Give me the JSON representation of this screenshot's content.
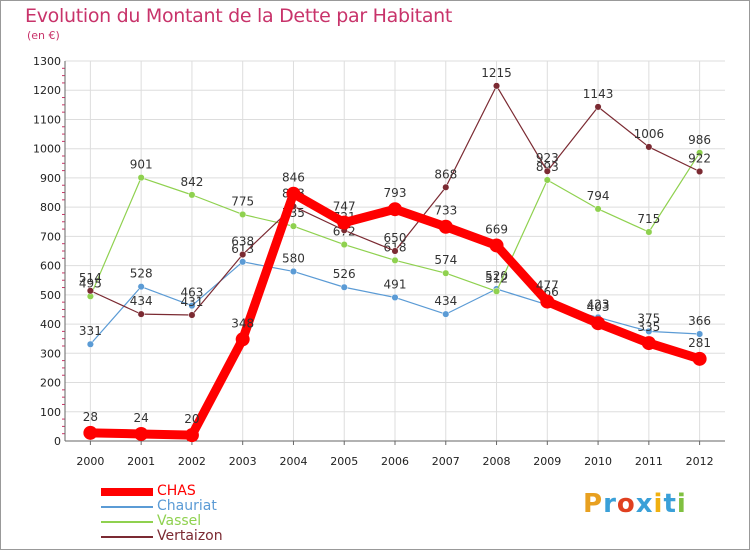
{
  "chart_data": {
    "type": "line",
    "title": "Evolution du Montant de la Dette par Habitant",
    "subtitle": "(en €)",
    "x": [
      "2000",
      "2001",
      "2002",
      "2003",
      "2004",
      "2005",
      "2006",
      "2007",
      "2008",
      "2009",
      "2010",
      "2011",
      "2012"
    ],
    "yticks": [
      "0",
      "100",
      "200",
      "300",
      "400",
      "500",
      "600",
      "700",
      "800",
      "900",
      "1000",
      "1100",
      "1200",
      "1300"
    ],
    "ylim": [
      0,
      1300
    ],
    "grid": true,
    "legend_position": "bottom-left",
    "series": [
      {
        "name": "Chauriat",
        "color": "#5b9bd5",
        "values": [
          331,
          528,
          463,
          613,
          580,
          526,
          491,
          434,
          520,
          466,
          423,
          375,
          366
        ],
        "labels": [
          "331",
          "528",
          "463",
          "613",
          "580",
          "526",
          "491",
          "434",
          "520",
          "466",
          "423",
          "375",
          "366"
        ]
      },
      {
        "name": "Vassel",
        "color": "#8fd14f",
        "values": [
          495,
          901,
          842,
          775,
          735,
          672,
          618,
          574,
          512,
          893,
          794,
          715,
          986
        ],
        "labels": [
          "495",
          "901",
          "842",
          "775",
          "735",
          "672",
          "618",
          "574",
          "512",
          "893",
          "794",
          "715",
          "986"
        ]
      },
      {
        "name": "Vertaizon",
        "color": "#7b2a32",
        "values": [
          514,
          434,
          431,
          638,
          803,
          721,
          650,
          868,
          1215,
          923,
          1143,
          1006,
          922
        ],
        "labels": [
          "514",
          "434",
          "431",
          "638",
          "803",
          "721",
          "650",
          "868",
          "1215",
          "923",
          "1143",
          "1006",
          "922"
        ]
      },
      {
        "name": "CHAS",
        "color": "#ff0000",
        "values": [
          28,
          24,
          20,
          348,
          846,
          747,
          793,
          733,
          669,
          477,
          403,
          335,
          281
        ],
        "labels": [
          "28",
          "24",
          "20",
          "348",
          "846",
          "747",
          "793",
          "733",
          "669",
          "477",
          "403",
          "335",
          "281"
        ]
      }
    ],
    "legend": [
      "CHAS",
      "Chauriat",
      "Vassel",
      "Vertaizon"
    ]
  },
  "legend_colors": {
    "CHAS": "#ff0000",
    "Chauriat": "#5b9bd5",
    "Vassel": "#8fd14f",
    "Vertaizon": "#7b2a32"
  },
  "logo": {
    "letters": [
      "P",
      "r",
      "o",
      "x",
      "i",
      "t",
      "i"
    ],
    "colors": [
      "#e8a020",
      "#3aa0d8",
      "#e04020",
      "#3aa0d8",
      "#f0b010",
      "#3aa0d8",
      "#80c040"
    ]
  }
}
